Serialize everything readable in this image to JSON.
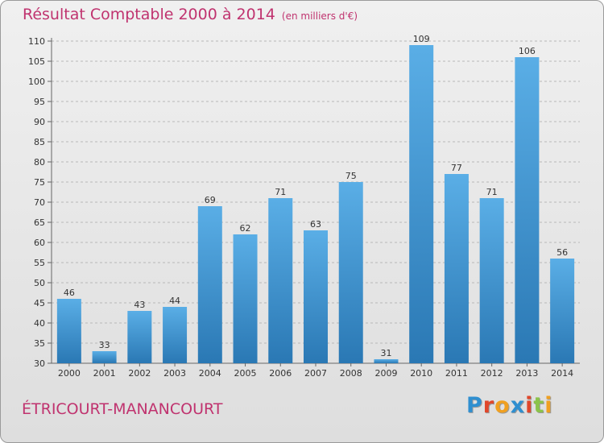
{
  "header": {
    "title": "Résultat Comptable 2000 à 2014",
    "subtitle": "(en milliers d'€)"
  },
  "footer": {
    "commune": "ÉTRICOURT-MANANCOURT",
    "logo_letters": [
      "P",
      "r",
      "o",
      "x",
      "i",
      "t",
      "i"
    ]
  },
  "colors": {
    "bar_top": "#5aaee6",
    "bar_bottom": "#2a78b4",
    "accent": "#c0336f",
    "logo": [
      "#2f8fd0",
      "#e0472b",
      "#f0a020",
      "#2f8fd0",
      "#e0472b",
      "#8bc34a",
      "#f0a020"
    ]
  },
  "chart_data": {
    "type": "bar",
    "categories": [
      "2000",
      "2001",
      "2002",
      "2003",
      "2004",
      "2005",
      "2006",
      "2007",
      "2008",
      "2009",
      "2010",
      "2011",
      "2012",
      "2013",
      "2014"
    ],
    "values": [
      46,
      33,
      43,
      44,
      69,
      62,
      71,
      63,
      75,
      31,
      109,
      77,
      71,
      106,
      56
    ],
    "ylim": [
      30,
      110
    ],
    "yticks": [
      30,
      35,
      40,
      45,
      50,
      55,
      60,
      65,
      70,
      75,
      80,
      85,
      90,
      95,
      100,
      105,
      110
    ],
    "grid": true
  }
}
